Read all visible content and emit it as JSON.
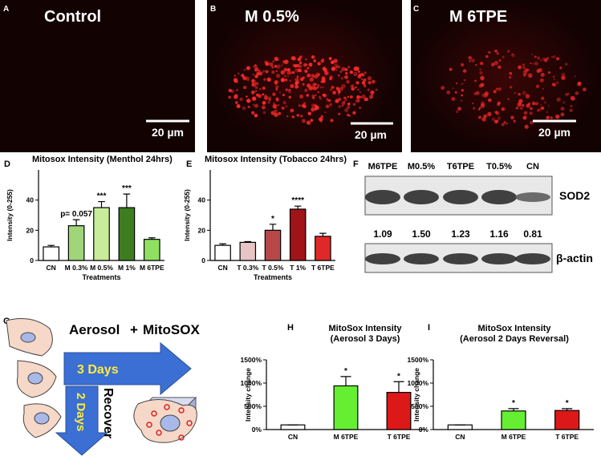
{
  "panels": {
    "A": {
      "letter": "A",
      "label": "Control",
      "scale": "20 µm"
    },
    "B": {
      "letter": "B",
      "label": "M 0.5%",
      "scale": "20 µm"
    },
    "C": {
      "letter": "C",
      "label": "M 6TPE",
      "scale": "20 µm"
    },
    "F": {
      "letter": "F",
      "lanes": [
        "M6TPE",
        "M0.5%",
        "T6TPE",
        "T0.5%",
        "CN"
      ],
      "ratios": [
        "1.09",
        "1.50",
        "1.23",
        "1.16",
        "0.81"
      ],
      "protein": "SOD2",
      "control": "β-actin"
    },
    "G": {
      "letter": "G",
      "aerosol": "Aerosol",
      "plus": "+",
      "probe": "MitoSOX",
      "exposure": "3 Days",
      "recovery": "2 Days",
      "recover": "Recover"
    }
  },
  "chart_data": [
    {
      "type": "bar",
      "letter": "D",
      "title": "Mitosox Intensity (Menthol 24hrs)",
      "ylabel": "Intensity (0-255)",
      "xlabel": "Treatments",
      "categories": [
        "CN",
        "M 0.3%",
        "M 0.5%",
        "M 1%",
        "M 6TPE"
      ],
      "series": [
        {
          "values": [
            9,
            23,
            35,
            35,
            14
          ],
          "errors": [
            1,
            4,
            4,
            9,
            1
          ],
          "colors": [
            "#ffffff",
            "#9fd67a",
            "#c8ec9a",
            "#3d7d1f",
            "#8fe060"
          ]
        }
      ],
      "annotations": [
        null,
        "p= 0.057",
        "***",
        "***",
        null
      ],
      "ylim": [
        0,
        60
      ],
      "yticks": [
        0,
        20,
        40
      ]
    },
    {
      "type": "bar",
      "letter": "E",
      "title": "Mitosox Intensity (Tobacco 24hrs)",
      "ylabel": "Intensity (0-255)",
      "xlabel": "Treatments",
      "categories": [
        "CN",
        "T 0.3%",
        "T 0.5%",
        "T 1%",
        "T 6TPE"
      ],
      "series": [
        {
          "values": [
            10,
            12,
            20,
            34,
            16
          ],
          "errors": [
            1,
            0.5,
            4,
            2,
            2
          ],
          "colors": [
            "#ffffff",
            "#e8c4c4",
            "#b84848",
            "#a01418",
            "#e02828"
          ]
        }
      ],
      "annotations": [
        null,
        null,
        "*",
        "****",
        null
      ],
      "ylim": [
        0,
        60
      ],
      "yticks": [
        0,
        20,
        40
      ]
    },
    {
      "type": "bar",
      "letter": "H",
      "title": "MitoSox Intensity",
      "subtitle": "(Aerosol 3 Days)",
      "ylabel": "Intensity change",
      "categories": [
        "CN",
        "M 6TPE",
        "T 6TPE"
      ],
      "series": [
        {
          "values": [
            100,
            940,
            800
          ],
          "errors": [
            0,
            200,
            230
          ],
          "colors": [
            "#ffffff",
            "#66ee33",
            "#dd1818"
          ]
        }
      ],
      "annotations": [
        null,
        "*",
        "*"
      ],
      "ylim": [
        0,
        1500
      ],
      "yticks": [
        {
          "value": 0,
          "label": "0%"
        },
        {
          "value": 500,
          "label": "500%"
        },
        {
          "value": 1000,
          "label": "1000%"
        },
        {
          "value": 1500,
          "label": "1500%"
        }
      ]
    },
    {
      "type": "bar",
      "letter": "I",
      "title": "MitoSox Intensity",
      "subtitle": "(Aerosol 2 Days Reversal)",
      "ylabel": "Intensity change",
      "categories": [
        "CN",
        "M 6TPE",
        "T 6TPE"
      ],
      "series": [
        {
          "values": [
            100,
            400,
            410
          ],
          "errors": [
            0,
            50,
            40
          ],
          "colors": [
            "#ffffff",
            "#66ee33",
            "#dd1818"
          ]
        }
      ],
      "annotations": [
        null,
        "*",
        "*"
      ],
      "ylim": [
        0,
        1500
      ],
      "yticks": [
        {
          "value": 0,
          "label": "0%"
        },
        {
          "value": 500,
          "label": "500%"
        },
        {
          "value": 1000,
          "label": "1000%"
        },
        {
          "value": 1500,
          "label": "1500%"
        }
      ]
    }
  ]
}
